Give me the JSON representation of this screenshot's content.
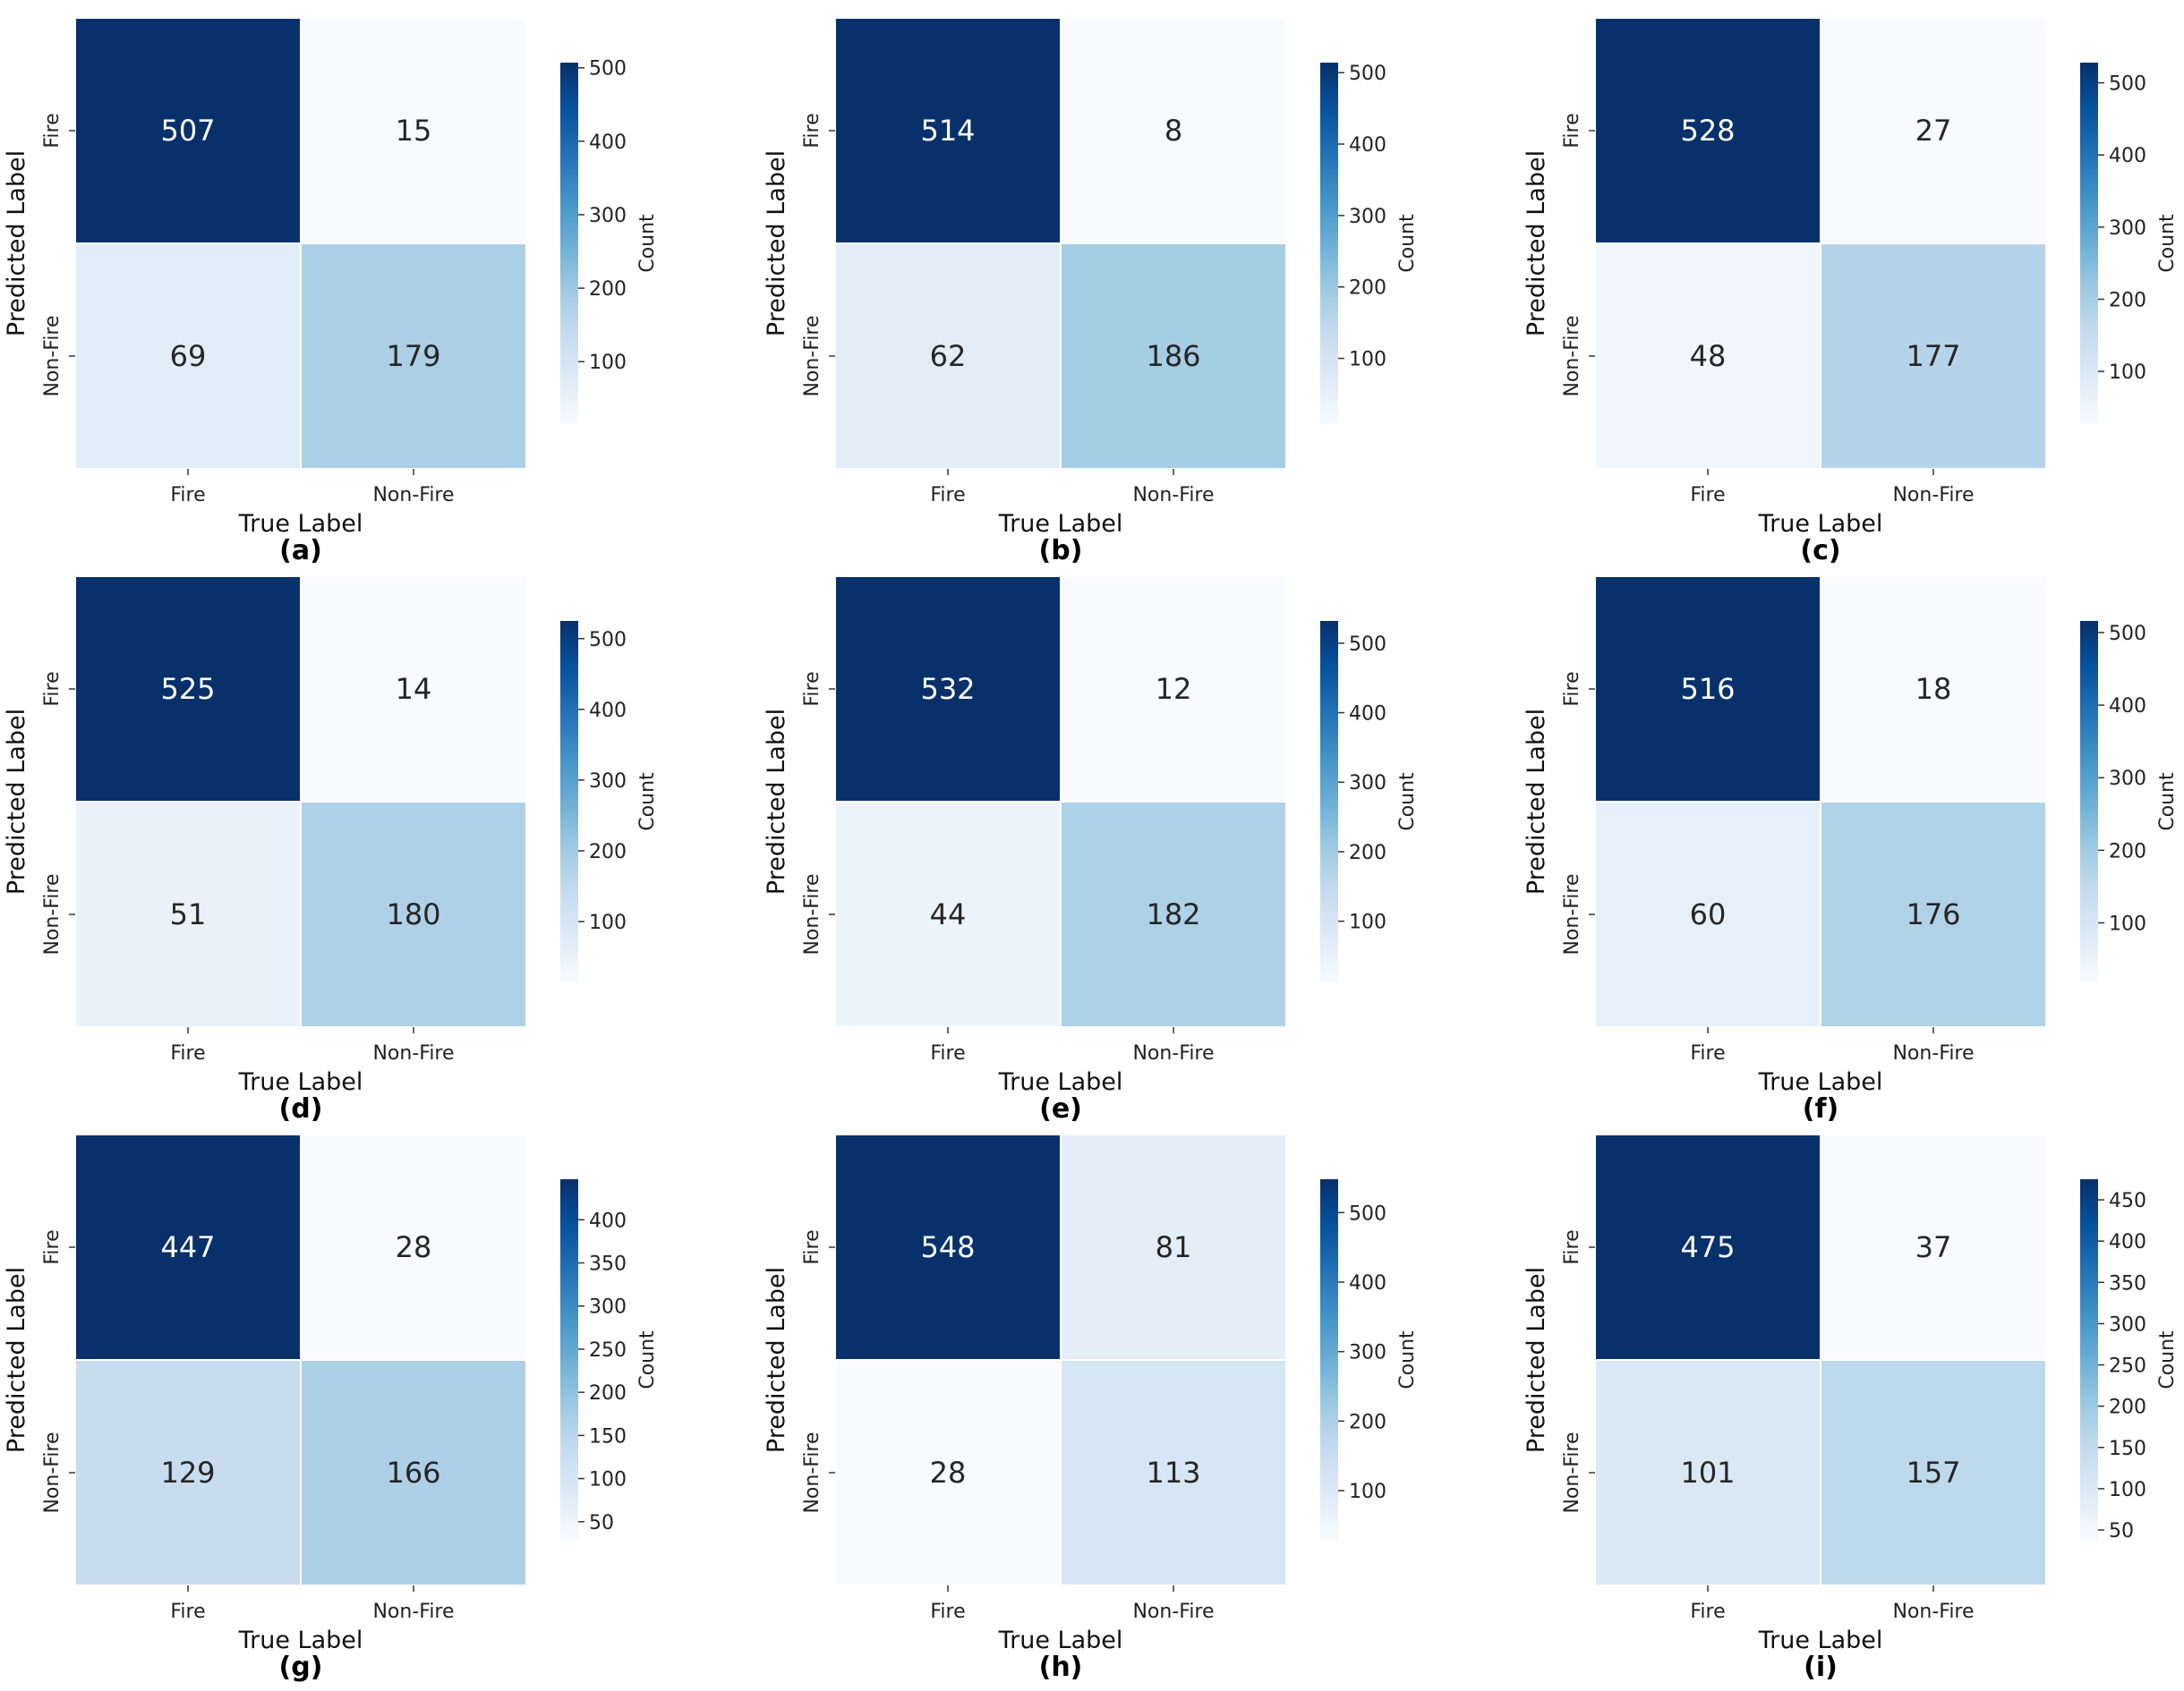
{
  "chart_data": [
    {
      "type": "heatmap",
      "panel_label": "(a)",
      "xlabel": "True Label",
      "ylabel": "Predicted Label",
      "colorbar_label": "Count",
      "x_categories": [
        "Fire",
        "Non-Fire"
      ],
      "y_categories": [
        "Fire",
        "Non-Fire"
      ],
      "values": [
        [
          507,
          15
        ],
        [
          69,
          179
        ]
      ],
      "colorbar_range": [
        15,
        507
      ],
      "colorbar_ticks": [
        100,
        200,
        300,
        400,
        500
      ],
      "colormap": "Blues"
    },
    {
      "type": "heatmap",
      "panel_label": "(b)",
      "xlabel": "True Label",
      "ylabel": "Predicted Label",
      "colorbar_label": "Count",
      "x_categories": [
        "Fire",
        "Non-Fire"
      ],
      "y_categories": [
        "Fire",
        "Non-Fire"
      ],
      "values": [
        [
          514,
          8
        ],
        [
          62,
          186
        ]
      ],
      "colorbar_range": [
        8,
        514
      ],
      "colorbar_ticks": [
        100,
        200,
        300,
        400,
        500
      ],
      "colormap": "Blues"
    },
    {
      "type": "heatmap",
      "panel_label": "(c)",
      "xlabel": "True Label",
      "ylabel": "Predicted Label",
      "colorbar_label": "Count",
      "x_categories": [
        "Fire",
        "Non-Fire"
      ],
      "y_categories": [
        "Fire",
        "Non-Fire"
      ],
      "values": [
        [
          528,
          27
        ],
        [
          48,
          177
        ]
      ],
      "colorbar_range": [
        27,
        528
      ],
      "colorbar_ticks": [
        100,
        200,
        300,
        400,
        500
      ],
      "colormap": "Blues"
    },
    {
      "type": "heatmap",
      "panel_label": "(d)",
      "xlabel": "True Label",
      "ylabel": "Predicted Label",
      "colorbar_label": "Count",
      "x_categories": [
        "Fire",
        "Non-Fire"
      ],
      "y_categories": [
        "Fire",
        "Non-Fire"
      ],
      "values": [
        [
          525,
          14
        ],
        [
          51,
          180
        ]
      ],
      "colorbar_range": [
        14,
        525
      ],
      "colorbar_ticks": [
        100,
        200,
        300,
        400,
        500
      ],
      "colormap": "Blues"
    },
    {
      "type": "heatmap",
      "panel_label": "(e)",
      "xlabel": "True Label",
      "ylabel": "Predicted Label",
      "colorbar_label": "Count",
      "x_categories": [
        "Fire",
        "Non-Fire"
      ],
      "y_categories": [
        "Fire",
        "Non-Fire"
      ],
      "values": [
        [
          532,
          12
        ],
        [
          44,
          182
        ]
      ],
      "colorbar_range": [
        12,
        532
      ],
      "colorbar_ticks": [
        100,
        200,
        300,
        400,
        500
      ],
      "colormap": "Blues"
    },
    {
      "type": "heatmap",
      "panel_label": "(f)",
      "xlabel": "True Label",
      "ylabel": "Predicted Label",
      "colorbar_label": "Count",
      "x_categories": [
        "Fire",
        "Non-Fire"
      ],
      "y_categories": [
        "Fire",
        "Non-Fire"
      ],
      "values": [
        [
          516,
          18
        ],
        [
          60,
          176
        ]
      ],
      "colorbar_range": [
        18,
        516
      ],
      "colorbar_ticks": [
        100,
        200,
        300,
        400,
        500
      ],
      "colormap": "Blues"
    },
    {
      "type": "heatmap",
      "panel_label": "(g)",
      "xlabel": "True Label",
      "ylabel": "Predicted Label",
      "colorbar_label": "Count",
      "x_categories": [
        "Fire",
        "Non-Fire"
      ],
      "y_categories": [
        "Fire",
        "Non-Fire"
      ],
      "values": [
        [
          447,
          28
        ],
        [
          129,
          166
        ]
      ],
      "colorbar_range": [
        28,
        447
      ],
      "colorbar_ticks": [
        50,
        100,
        150,
        200,
        250,
        300,
        350,
        400
      ],
      "colormap": "Blues"
    },
    {
      "type": "heatmap",
      "panel_label": "(h)",
      "xlabel": "True Label",
      "ylabel": "Predicted Label",
      "colorbar_label": "Count",
      "x_categories": [
        "Fire",
        "Non-Fire"
      ],
      "y_categories": [
        "Fire",
        "Non-Fire"
      ],
      "values": [
        [
          548,
          81
        ],
        [
          28,
          113
        ]
      ],
      "colorbar_range": [
        28,
        548
      ],
      "colorbar_ticks": [
        100,
        200,
        300,
        400,
        500
      ],
      "colormap": "Blues"
    },
    {
      "type": "heatmap",
      "panel_label": "(i)",
      "xlabel": "True Label",
      "ylabel": "Predicted Label",
      "colorbar_label": "Count",
      "x_categories": [
        "Fire",
        "Non-Fire"
      ],
      "y_categories": [
        "Fire",
        "Non-Fire"
      ],
      "values": [
        [
          475,
          37
        ],
        [
          101,
          157
        ]
      ],
      "colorbar_range": [
        37,
        475
      ],
      "colorbar_ticks": [
        50,
        100,
        150,
        200,
        250,
        300,
        350,
        400,
        450
      ],
      "colormap": "Blues"
    }
  ]
}
